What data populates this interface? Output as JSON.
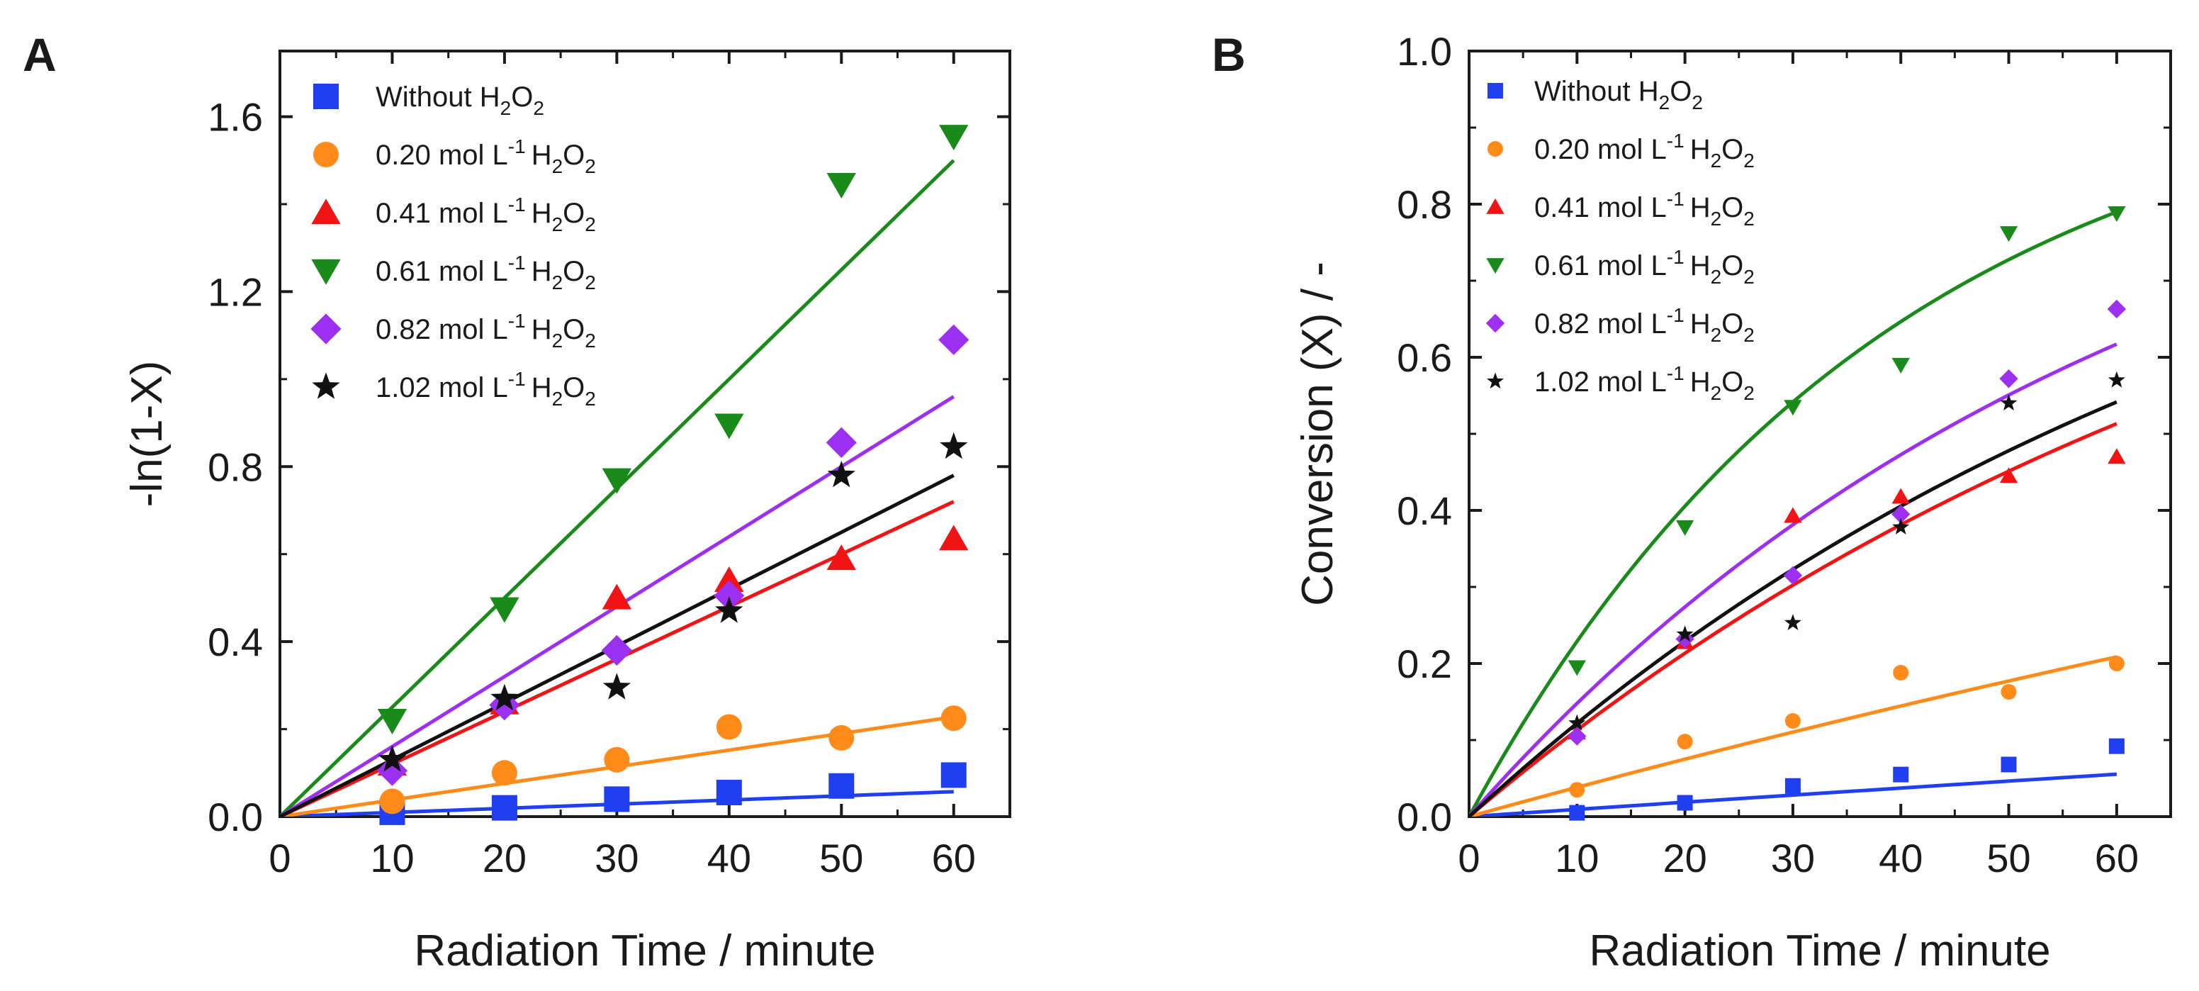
{
  "chart_data": [
    {
      "panel": "A",
      "type": "scatter",
      "title": "",
      "xlabel": "Radiation Time / minute",
      "ylabel": "-ln(1-X)",
      "xlim": [
        0,
        65
      ],
      "ylim": [
        0,
        1.75
      ],
      "xticks": [
        0,
        10,
        20,
        30,
        40,
        50,
        60
      ],
      "yticks": [
        0.0,
        0.4,
        0.8,
        1.2,
        1.6
      ],
      "yticks_text": [
        "0.0",
        "0.4",
        "0.8",
        "1.2",
        "1.6"
      ],
      "legend_position": "top-left",
      "series": [
        {
          "name": "Without H2O2",
          "label_main": "Without H",
          "label_mid": "O",
          "sub": "2",
          "sup": "",
          "color": "#1f3ff0",
          "marker": "square",
          "x": [
            10,
            20,
            30,
            40,
            50,
            60
          ],
          "y": [
            0.01,
            0.02,
            0.04,
            0.055,
            0.07,
            0.095
          ],
          "fit": {
            "kind": "linear",
            "k": 0.00095
          }
        },
        {
          "name": "0.20 mol L-1 H2O2",
          "label_main": "0.20 mol L",
          "label_mid": "O",
          "sub": "2",
          "sup": "-1",
          "color": "#ff8c1a",
          "marker": "circle",
          "x": [
            10,
            20,
            30,
            40,
            50,
            60
          ],
          "y": [
            0.035,
            0.1,
            0.13,
            0.205,
            0.18,
            0.225
          ],
          "fit": {
            "kind": "linear",
            "k": 0.0038
          }
        },
        {
          "name": "0.41 mol L-1 H2O2",
          "label_main": "0.41 mol L",
          "label_mid": "O",
          "sub": "2",
          "sup": "-1",
          "color": "#f01414",
          "marker": "triangle-up",
          "x": [
            10,
            20,
            30,
            40,
            50,
            60
          ],
          "y": [
            0.12,
            0.26,
            0.5,
            0.54,
            0.59,
            0.635
          ],
          "fit": {
            "kind": "linear",
            "k": 0.012
          }
        },
        {
          "name": "0.61 mol L-1 H2O2",
          "label_main": "0.61 mol L",
          "label_mid": "O",
          "sub": "2",
          "sup": "-1",
          "color": "#1a8a1a",
          "marker": "triangle-down",
          "x": [
            10,
            20,
            30,
            40,
            50,
            60
          ],
          "y": [
            0.22,
            0.475,
            0.77,
            0.895,
            1.445,
            1.555
          ],
          "fit": {
            "kind": "linear",
            "k": 0.025
          }
        },
        {
          "name": "0.82 mol L-1 H2O2",
          "label_main": "0.82 mol L",
          "label_mid": "O",
          "sub": "2",
          "sup": "-1",
          "color": "#9b30f0",
          "marker": "diamond",
          "x": [
            10,
            20,
            30,
            40,
            50,
            60
          ],
          "y": [
            0.105,
            0.255,
            0.38,
            0.505,
            0.855,
            1.09
          ],
          "fit": {
            "kind": "linear",
            "k": 0.016
          }
        },
        {
          "name": "1.02 mol L-1 H2O2",
          "label_main": "1.02 mol L",
          "label_mid": "O",
          "sub": "2",
          "sup": "-1",
          "color": "#111111",
          "marker": "star",
          "x": [
            10,
            20,
            30,
            40,
            50,
            60
          ],
          "y": [
            0.13,
            0.27,
            0.295,
            0.47,
            0.78,
            0.845
          ],
          "fit": {
            "kind": "linear",
            "k": 0.013
          }
        }
      ]
    },
    {
      "panel": "B",
      "type": "scatter",
      "title": "",
      "xlabel": "Radiation Time / minute",
      "ylabel": "Conversion (X) / -",
      "xlim": [
        0,
        65
      ],
      "ylim": [
        0,
        1.0
      ],
      "xticks": [
        0,
        10,
        20,
        30,
        40,
        50,
        60
      ],
      "yticks": [
        0.0,
        0.2,
        0.4,
        0.6,
        0.8,
        1.0
      ],
      "yticks_text": [
        "0.0",
        "0.2",
        "0.4",
        "0.6",
        "0.8",
        "1.0"
      ],
      "legend_position": "top-left",
      "series": [
        {
          "name": "Without H2O2",
          "label_main": "Without H",
          "label_mid": "O",
          "sub": "2",
          "sup": "",
          "color": "#1f3ff0",
          "marker": "square",
          "x": [
            10,
            20,
            30,
            40,
            50,
            60
          ],
          "y": [
            0.005,
            0.018,
            0.04,
            0.055,
            0.068,
            0.092
          ],
          "fit": {
            "kind": "exp",
            "k": 0.00095
          }
        },
        {
          "name": "0.20 mol L-1 H2O2",
          "label_main": "0.20 mol L",
          "label_mid": "O",
          "sub": "2",
          "sup": "-1",
          "color": "#ff8c1a",
          "marker": "circle",
          "x": [
            10,
            20,
            30,
            40,
            50,
            60
          ],
          "y": [
            0.035,
            0.098,
            0.125,
            0.188,
            0.163,
            0.2
          ],
          "fit": {
            "kind": "exp",
            "k": 0.0039
          }
        },
        {
          "name": "0.41 mol L-1 H2O2",
          "label_main": "0.41 mol L",
          "label_mid": "O",
          "sub": "2",
          "sup": "-1",
          "color": "#f01414",
          "marker": "triangle-up",
          "x": [
            10,
            20,
            30,
            40,
            50,
            60
          ],
          "y": [
            0.11,
            0.228,
            0.393,
            0.418,
            0.445,
            0.47
          ],
          "fit": {
            "kind": "exp",
            "k": 0.012
          }
        },
        {
          "name": "0.61 mol L-1 H2O2",
          "label_main": "0.61 mol L",
          "label_mid": "O",
          "sub": "2",
          "sup": "-1",
          "color": "#1a8a1a",
          "marker": "triangle-down",
          "x": [
            10,
            20,
            30,
            40,
            50,
            60
          ],
          "y": [
            0.195,
            0.378,
            0.535,
            0.59,
            0.762,
            0.788
          ],
          "fit": {
            "kind": "exp",
            "k": 0.026
          }
        },
        {
          "name": "0.82 mol L-1 H2O2",
          "label_main": "0.82 mol L",
          "label_mid": "O",
          "sub": "2",
          "sup": "-1",
          "color": "#9b30f0",
          "marker": "diamond",
          "x": [
            10,
            20,
            30,
            40,
            50,
            60
          ],
          "y": [
            0.105,
            0.232,
            0.315,
            0.395,
            0.572,
            0.663
          ],
          "fit": {
            "kind": "exp",
            "k": 0.016
          }
        },
        {
          "name": "1.02 mol L-1 H2O2",
          "label_main": "1.02 mol L",
          "label_mid": "O",
          "sub": "2",
          "sup": "-1",
          "color": "#111111",
          "marker": "star",
          "x": [
            10,
            20,
            30,
            40,
            50,
            60
          ],
          "y": [
            0.122,
            0.238,
            0.253,
            0.378,
            0.54,
            0.57
          ],
          "fit": {
            "kind": "exp",
            "k": 0.013
          }
        }
      ]
    }
  ]
}
